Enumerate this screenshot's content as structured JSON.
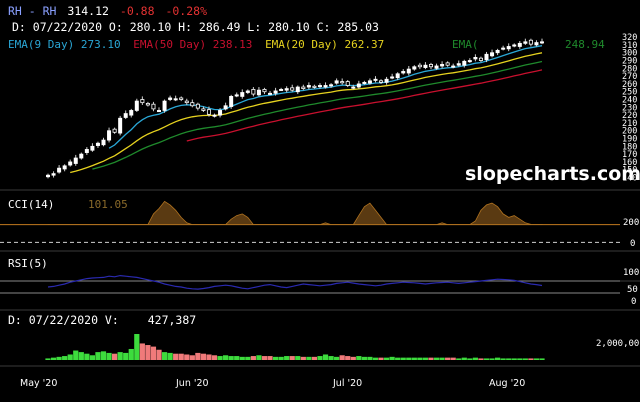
{
  "header": {
    "symbol": "RH - RH",
    "last": "314.12",
    "change": "-0.88",
    "change_pct": "-0.28%",
    "ohlc": "D: 07/22/2020 O: 280.10 H: 286.49 L: 280.10 C: 285.03"
  },
  "ema_legend": [
    {
      "label": "EMA(9 Day) 273.10",
      "color": "#2aa7d6"
    },
    {
      "label": "EMA(50 Day) 238.13",
      "color": "#c8102e"
    },
    {
      "label": "EMA(20 Day) 262.37",
      "color": "#e6d21f"
    },
    {
      "label": "EMA(",
      "color": "#1f8a2c"
    },
    {
      "label": "248.94",
      "color": "#1f8a2c"
    }
  ],
  "watermark": "slopecharts.com",
  "cci": {
    "label": "CCI(14)",
    "value": "101.05",
    "ticks": [
      "200",
      "0"
    ]
  },
  "rsi": {
    "label": "RSI(5)",
    "ticks": [
      "100",
      "50",
      "0"
    ]
  },
  "volume": {
    "label": "D: 07/22/2020 V:",
    "value": "427,387",
    "tick": "2,000,000"
  },
  "x_labels": [
    "May '20",
    "Jun '20",
    "Jul '20",
    "Aug '20"
  ],
  "chart_data": {
    "type": "candlestick",
    "y_ticks": [
      320,
      310,
      300,
      290,
      280,
      270,
      260,
      250,
      240,
      230,
      220,
      210,
      200,
      190,
      180,
      170,
      160,
      150,
      140
    ],
    "ylim": [
      133,
      324
    ],
    "closes": [
      143,
      145,
      152,
      155,
      160,
      165,
      170,
      176,
      180,
      184,
      188,
      200,
      198,
      216,
      222,
      226,
      238,
      236,
      233,
      228,
      226,
      238,
      242,
      241,
      240,
      236,
      232,
      229,
      226,
      221,
      220,
      226,
      232,
      244,
      246,
      249,
      251,
      247,
      252,
      250,
      248,
      251,
      253,
      254,
      252,
      256,
      254,
      258,
      256,
      258,
      258,
      259,
      264,
      262,
      258,
      256,
      260,
      262,
      264,
      266,
      262,
      266,
      269,
      273,
      276,
      279,
      282,
      282,
      284,
      282,
      283,
      285,
      284,
      283,
      286,
      289,
      290,
      294,
      290,
      298,
      300,
      303,
      306,
      308,
      310,
      312,
      314,
      311,
      313,
      314
    ],
    "cci_values": [
      0,
      0,
      0,
      0,
      0,
      0,
      0,
      0,
      0,
      0,
      0,
      0,
      0,
      0,
      0,
      0,
      0,
      0,
      0,
      160,
      190,
      230,
      210,
      180,
      140,
      110,
      90,
      70,
      60,
      50,
      40,
      60,
      80,
      130,
      150,
      160,
      140,
      90,
      60,
      50,
      40,
      90,
      70,
      40,
      20,
      60,
      90,
      70,
      80,
      100,
      110,
      60,
      40,
      60,
      80,
      100,
      150,
      200,
      220,
      180,
      140,
      90,
      60,
      40,
      20,
      40,
      70,
      90,
      80,
      60,
      90,
      110,
      80,
      50,
      40,
      60,
      90,
      120,
      180,
      210,
      220,
      200,
      160,
      140,
      150,
      130,
      110,
      101,
      95,
      101
    ],
    "rsi_values": [
      50,
      52,
      56,
      60,
      66,
      70,
      74,
      78,
      80,
      81,
      82,
      86,
      84,
      88,
      86,
      84,
      82,
      78,
      74,
      70,
      66,
      60,
      56,
      52,
      50,
      46,
      44,
      43,
      45,
      48,
      52,
      54,
      56,
      54,
      50,
      46,
      44,
      48,
      52,
      56,
      58,
      54,
      50,
      48,
      52,
      56,
      60,
      58,
      56,
      54,
      56,
      58,
      62,
      64,
      66,
      63,
      60,
      58,
      56,
      54,
      56,
      60,
      62,
      64,
      66,
      65,
      64,
      62,
      60,
      62,
      64,
      65,
      66,
      64,
      62,
      64,
      66,
      68,
      70,
      72,
      74,
      76,
      75,
      74,
      72,
      68,
      64,
      60,
      58,
      55
    ],
    "volume_values": [
      0.2,
      0.3,
      0.4,
      0.5,
      0.7,
      1.2,
      1.0,
      0.8,
      0.6,
      1.0,
      1.1,
      0.9,
      0.8,
      1.0,
      0.9,
      1.4,
      3.3,
      2.1,
      1.9,
      1.7,
      1.3,
      1.0,
      0.9,
      0.8,
      0.8,
      0.7,
      0.6,
      0.9,
      0.8,
      0.7,
      0.6,
      0.5,
      0.6,
      0.5,
      0.5,
      0.4,
      0.4,
      0.5,
      0.6,
      0.5,
      0.5,
      0.4,
      0.4,
      0.5,
      0.5,
      0.5,
      0.4,
      0.4,
      0.4,
      0.5,
      0.7,
      0.5,
      0.4,
      0.6,
      0.5,
      0.4,
      0.5,
      0.4,
      0.4,
      0.3,
      0.3,
      0.3,
      0.4,
      0.3,
      0.3,
      0.3,
      0.3,
      0.3,
      0.3,
      0.3,
      0.3,
      0.3,
      0.3,
      0.3,
      0.2,
      0.3,
      0.2,
      0.3,
      0.2,
      0.2,
      0.2,
      0.3,
      0.2,
      0.2,
      0.2,
      0.2,
      0.2,
      0.2,
      0.2,
      0.2
    ]
  }
}
